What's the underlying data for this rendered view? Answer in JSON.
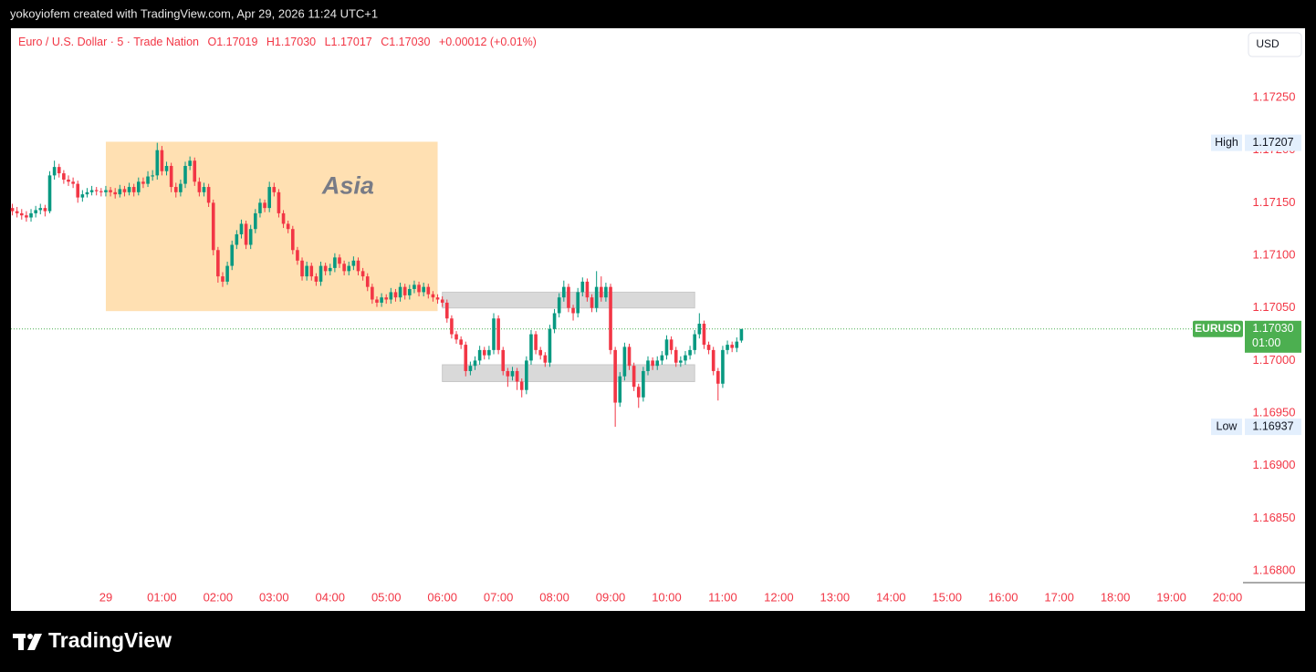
{
  "header": {
    "author_line": "yokoyiofem created with TradingView.com, Apr 29, 2026 11:24 UTC+1",
    "legend_title": "Euro / U.S. Dollar · 5 · Trade Nation",
    "legend": [
      [
        "O",
        "1.17019"
      ],
      [
        "H",
        "1.17030"
      ],
      [
        "L",
        "1.17017"
      ],
      [
        "C",
        "1.17030"
      ]
    ],
    "change": "+0.00012 (+0.01%)",
    "currency": "USD"
  },
  "footer": {
    "brand": "TradingView"
  },
  "chart_data": {
    "type": "candlestick",
    "up_color": "#089981",
    "down_color": "#f23645",
    "grid": false,
    "xlim": [
      -101.5,
      1216.6
    ],
    "ylim": [
      1.16788,
      1.17315
    ],
    "xticks": [
      {
        "value": 0,
        "label": "29"
      },
      {
        "value": 60,
        "label": "01:00"
      },
      {
        "value": 120,
        "label": "02:00"
      },
      {
        "value": 180,
        "label": "03:00"
      },
      {
        "value": 240,
        "label": "04:00"
      },
      {
        "value": 300,
        "label": "05:00"
      },
      {
        "value": 360,
        "label": "06:00"
      },
      {
        "value": 420,
        "label": "07:00"
      },
      {
        "value": 480,
        "label": "08:00"
      },
      {
        "value": 540,
        "label": "09:00"
      },
      {
        "value": 600,
        "label": "10:00"
      },
      {
        "value": 660,
        "label": "11:00"
      },
      {
        "value": 720,
        "label": "12:00"
      },
      {
        "value": 780,
        "label": "13:00"
      },
      {
        "value": 840,
        "label": "14:00"
      },
      {
        "value": 900,
        "label": "15:00"
      },
      {
        "value": 960,
        "label": "16:00"
      },
      {
        "value": 1020,
        "label": "17:00"
      },
      {
        "value": 1080,
        "label": "18:00"
      },
      {
        "value": 1140,
        "label": "19:00"
      },
      {
        "value": 1200,
        "label": "20:00"
      }
    ],
    "yticks": [
      {
        "value": 1.1725,
        "label": "1.17250"
      },
      {
        "value": 1.172,
        "label": "1.17200"
      },
      {
        "value": 1.1715,
        "label": "1.17150"
      },
      {
        "value": 1.171,
        "label": "1.17100"
      },
      {
        "value": 1.1705,
        "label": "1.17050"
      },
      {
        "value": 1.17,
        "label": "1.17000"
      },
      {
        "value": 1.1695,
        "label": "1.16950"
      },
      {
        "value": 1.169,
        "label": "1.16900"
      },
      {
        "value": 1.1685,
        "label": "1.16850"
      },
      {
        "value": 1.168,
        "label": "1.16800"
      }
    ],
    "zones": [
      {
        "label": "Asia",
        "x": [
          0,
          355
        ],
        "y": [
          1.17047,
          1.17208
        ],
        "color": "#ffe0b2"
      },
      {
        "x": [
          360,
          630
        ],
        "y": [
          1.1705,
          1.17065
        ],
        "color": "#d9d9d9"
      },
      {
        "x": [
          360,
          630
        ],
        "y": [
          1.1698,
          1.16996
        ],
        "color": "#d9d9d9"
      }
    ],
    "high_tag": {
      "label": "High",
      "value": 1.17207
    },
    "low_tag": {
      "label": "Low",
      "value": 1.16937
    },
    "price_tag": {
      "label": "EURUSD",
      "value": {
        "value": 1.1703,
        "label": "1.17030"
      },
      "countdown": "01:00",
      "color": "#4caf50"
    },
    "candles": {
      "x": [
        -100,
        -95,
        -90,
        -85,
        -80,
        -75,
        -70,
        -65,
        -60,
        -55,
        -50,
        -45,
        -40,
        -35,
        -30,
        -25,
        -20,
        -15,
        -10,
        -5,
        0,
        5,
        10,
        15,
        20,
        25,
        30,
        35,
        40,
        45,
        50,
        55,
        60,
        65,
        70,
        75,
        80,
        85,
        90,
        95,
        100,
        105,
        110,
        115,
        120,
        125,
        130,
        135,
        140,
        145,
        150,
        155,
        160,
        165,
        170,
        175,
        180,
        185,
        190,
        195,
        200,
        205,
        210,
        215,
        220,
        225,
        230,
        235,
        240,
        245,
        250,
        255,
        260,
        265,
        270,
        275,
        280,
        285,
        290,
        295,
        300,
        305,
        310,
        315,
        320,
        325,
        330,
        335,
        340,
        345,
        350,
        355,
        360,
        365,
        370,
        375,
        380,
        385,
        390,
        395,
        400,
        405,
        410,
        415,
        420,
        425,
        430,
        435,
        440,
        445,
        450,
        455,
        460,
        465,
        470,
        475,
        480,
        485,
        490,
        495,
        500,
        505,
        510,
        515,
        520,
        525,
        530,
        535,
        540,
        545,
        550,
        555,
        560,
        565,
        570,
        575,
        580,
        585,
        590,
        595,
        600,
        605,
        610,
        615,
        620,
        625,
        630,
        635,
        640,
        645,
        650,
        655,
        660,
        665,
        670,
        675,
        680
      ],
      "open": [
        1.17145,
        1.17142,
        1.1714,
        1.17138,
        1.17136,
        1.1714,
        1.17143,
        1.17145,
        1.17142,
        1.17176,
        1.17184,
        1.17178,
        1.17172,
        1.1717,
        1.17168,
        1.17155,
        1.17158,
        1.1716,
        1.17162,
        1.17161,
        1.1716,
        1.17162,
        1.1716,
        1.17158,
        1.17163,
        1.1716,
        1.17165,
        1.1716,
        1.1717,
        1.17168,
        1.17175,
        1.17176,
        1.172,
        1.1718,
        1.17185,
        1.17165,
        1.1716,
        1.17168,
        1.17185,
        1.1719,
        1.1717,
        1.1716,
        1.17165,
        1.1715,
        1.17105,
        1.1708,
        1.17075,
        1.1709,
        1.1711,
        1.1712,
        1.1713,
        1.1711,
        1.17125,
        1.1714,
        1.1715,
        1.17145,
        1.17165,
        1.1716,
        1.1714,
        1.1713,
        1.17125,
        1.17105,
        1.17095,
        1.1708,
        1.1709,
        1.1708,
        1.17075,
        1.1709,
        1.17085,
        1.17088,
        1.17098,
        1.17092,
        1.17085,
        1.1709,
        1.17095,
        1.17085,
        1.1708,
        1.1707,
        1.17058,
        1.17055,
        1.1706,
        1.17058,
        1.17065,
        1.1706,
        1.1707,
        1.17062,
        1.17068,
        1.17072,
        1.17065,
        1.1707,
        1.17063,
        1.1706,
        1.17058,
        1.17055,
        1.1704,
        1.17025,
        1.1702,
        1.17015,
        1.1699,
        1.16995,
        1.17,
        1.1701,
        1.17005,
        1.1701,
        1.1704,
        1.1701,
        1.1699,
        1.16985,
        1.1699,
        1.1698,
        1.16972,
        1.17,
        1.17025,
        1.1701,
        1.17005,
        1.16998,
        1.1703,
        1.17045,
        1.1706,
        1.1707,
        1.1705,
        1.17045,
        1.17065,
        1.17075,
        1.1706,
        1.1705,
        1.1707,
        1.1706,
        1.1707,
        1.1701,
        1.1696,
        1.16985,
        1.17013,
        1.16995,
        1.16975,
        1.16965,
        1.1699,
        1.17,
        1.16995,
        1.17,
        1.17005,
        1.1702,
        1.1701,
        1.16998,
        1.17,
        1.17005,
        1.1701,
        1.17025,
        1.17035,
        1.17015,
        1.1701,
        1.1699,
        1.16978,
        1.1701,
        1.17015,
        1.17012,
        1.17019
      ],
      "high": [
        1.17149,
        1.17146,
        1.17144,
        1.17142,
        1.17144,
        1.17147,
        1.17149,
        1.17148,
        1.1718,
        1.1719,
        1.17187,
        1.17181,
        1.17176,
        1.17174,
        1.17171,
        1.17162,
        1.17164,
        1.17166,
        1.17165,
        1.17164,
        1.17166,
        1.17165,
        1.17164,
        1.17167,
        1.17166,
        1.17169,
        1.17168,
        1.17174,
        1.17174,
        1.1718,
        1.17181,
        1.17207,
        1.17204,
        1.17189,
        1.17188,
        1.17169,
        1.17172,
        1.17189,
        1.17194,
        1.17193,
        1.17174,
        1.17169,
        1.17168,
        1.17153,
        1.17108,
        1.17084,
        1.17094,
        1.17114,
        1.17124,
        1.17134,
        1.17133,
        1.17129,
        1.17144,
        1.17154,
        1.17153,
        1.1717,
        1.17169,
        1.17163,
        1.17143,
        1.17133,
        1.17128,
        1.17108,
        1.17098,
        1.17094,
        1.17093,
        1.17083,
        1.17094,
        1.17093,
        1.17092,
        1.17102,
        1.17101,
        1.17095,
        1.17094,
        1.17099,
        1.17098,
        1.17088,
        1.17083,
        1.17073,
        1.17061,
        1.17064,
        1.17063,
        1.17069,
        1.17068,
        1.17074,
        1.17073,
        1.17072,
        1.17076,
        1.17075,
        1.17074,
        1.17073,
        1.17066,
        1.17063,
        1.17061,
        1.17058,
        1.17043,
        1.17028,
        1.17023,
        1.17018,
        1.16999,
        1.17004,
        1.17014,
        1.17013,
        1.17014,
        1.17045,
        1.17043,
        1.17013,
        1.16993,
        1.16994,
        1.16993,
        1.16983,
        1.17004,
        1.17029,
        1.17028,
        1.17013,
        1.17008,
        1.17034,
        1.17049,
        1.17064,
        1.17076,
        1.17073,
        1.17053,
        1.17069,
        1.17079,
        1.17078,
        1.17063,
        1.17085,
        1.1708,
        1.17074,
        1.17073,
        1.17013,
        1.16989,
        1.17017,
        1.17016,
        1.16998,
        1.16978,
        1.16994,
        1.17004,
        1.17003,
        1.17004,
        1.17009,
        1.17024,
        1.17023,
        1.17013,
        1.17004,
        1.17009,
        1.17014,
        1.17029,
        1.17045,
        1.17038,
        1.17018,
        1.17013,
        1.16993,
        1.17014,
        1.17019,
        1.17018,
        1.17022,
        1.1703
      ],
      "low": [
        1.17138,
        1.17136,
        1.17134,
        1.17132,
        1.17132,
        1.17136,
        1.17139,
        1.17137,
        1.1714,
        1.17172,
        1.17174,
        1.17168,
        1.17166,
        1.17164,
        1.1715,
        1.17151,
        1.17155,
        1.17157,
        1.17157,
        1.17156,
        1.17156,
        1.17156,
        1.17154,
        1.17155,
        1.17156,
        1.17157,
        1.17156,
        1.17157,
        1.17164,
        1.17165,
        1.17171,
        1.17172,
        1.17176,
        1.17176,
        1.1716,
        1.17155,
        1.17156,
        1.17164,
        1.17181,
        1.17166,
        1.17156,
        1.17156,
        1.17146,
        1.171,
        1.17074,
        1.1707,
        1.17072,
        1.17086,
        1.17106,
        1.17116,
        1.17106,
        1.17106,
        1.17121,
        1.17136,
        1.17141,
        1.17141,
        1.17156,
        1.17136,
        1.17126,
        1.17121,
        1.17101,
        1.17091,
        1.17076,
        1.17076,
        1.17076,
        1.17071,
        1.17071,
        1.17081,
        1.17081,
        1.17084,
        1.17088,
        1.17081,
        1.17081,
        1.17086,
        1.17081,
        1.17076,
        1.17066,
        1.17054,
        1.17051,
        1.17051,
        1.17054,
        1.17054,
        1.17056,
        1.17056,
        1.17058,
        1.17058,
        1.17064,
        1.17061,
        1.17061,
        1.17059,
        1.17056,
        1.17054,
        1.17051,
        1.17036,
        1.17021,
        1.17016,
        1.17011,
        1.16985,
        1.16986,
        1.16991,
        1.16996,
        1.17001,
        1.17001,
        1.17006,
        1.17006,
        1.16986,
        1.16975,
        1.16981,
        1.16972,
        1.16965,
        1.16968,
        1.16996,
        1.17006,
        1.17001,
        1.16994,
        1.16994,
        1.17026,
        1.17041,
        1.17056,
        1.17046,
        1.17038,
        1.17041,
        1.17061,
        1.17056,
        1.17046,
        1.17046,
        1.17056,
        1.17056,
        1.17006,
        1.16937,
        1.16956,
        1.16981,
        1.16991,
        1.16971,
        1.16955,
        1.16961,
        1.16986,
        1.16991,
        1.16991,
        1.16996,
        1.17001,
        1.17006,
        1.16994,
        1.16994,
        1.16996,
        1.17001,
        1.17006,
        1.17021,
        1.17011,
        1.17006,
        1.16986,
        1.16962,
        1.16974,
        1.17006,
        1.17008,
        1.17008,
        1.17017
      ],
      "close": [
        1.17142,
        1.1714,
        1.17138,
        1.17136,
        1.1714,
        1.17143,
        1.17145,
        1.17142,
        1.17176,
        1.17184,
        1.17178,
        1.17172,
        1.1717,
        1.17168,
        1.17155,
        1.17158,
        1.1716,
        1.17162,
        1.17161,
        1.1716,
        1.17162,
        1.1716,
        1.17158,
        1.17163,
        1.1716,
        1.17165,
        1.1716,
        1.1717,
        1.17168,
        1.17175,
        1.17176,
        1.172,
        1.1718,
        1.17185,
        1.17165,
        1.1716,
        1.17168,
        1.17185,
        1.1719,
        1.1717,
        1.1716,
        1.17165,
        1.1715,
        1.17105,
        1.1708,
        1.17075,
        1.1709,
        1.1711,
        1.1712,
        1.1713,
        1.1711,
        1.17125,
        1.1714,
        1.1715,
        1.17145,
        1.17165,
        1.1716,
        1.1714,
        1.1713,
        1.17125,
        1.17105,
        1.17095,
        1.1708,
        1.1709,
        1.1708,
        1.17075,
        1.1709,
        1.17085,
        1.17088,
        1.17098,
        1.17092,
        1.17085,
        1.1709,
        1.17095,
        1.17085,
        1.1708,
        1.1707,
        1.17058,
        1.17055,
        1.1706,
        1.17058,
        1.17065,
        1.1706,
        1.1707,
        1.17062,
        1.17068,
        1.17072,
        1.17065,
        1.1707,
        1.17063,
        1.1706,
        1.17058,
        1.17055,
        1.1704,
        1.17025,
        1.1702,
        1.17015,
        1.1699,
        1.16995,
        1.17,
        1.1701,
        1.17005,
        1.1701,
        1.1704,
        1.1701,
        1.1699,
        1.16985,
        1.1699,
        1.1698,
        1.16972,
        1.17,
        1.17025,
        1.1701,
        1.17005,
        1.16998,
        1.1703,
        1.17045,
        1.1706,
        1.1707,
        1.1705,
        1.17045,
        1.17065,
        1.17075,
        1.1706,
        1.1705,
        1.1707,
        1.1706,
        1.1707,
        1.1701,
        1.1696,
        1.16985,
        1.17013,
        1.16995,
        1.16975,
        1.16965,
        1.1699,
        1.17,
        1.16995,
        1.17,
        1.17005,
        1.1702,
        1.1701,
        1.16998,
        1.17,
        1.17005,
        1.1701,
        1.17025,
        1.17035,
        1.17015,
        1.1701,
        1.1699,
        1.16978,
        1.1701,
        1.17015,
        1.17012,
        1.17018,
        1.1703
      ]
    }
  }
}
